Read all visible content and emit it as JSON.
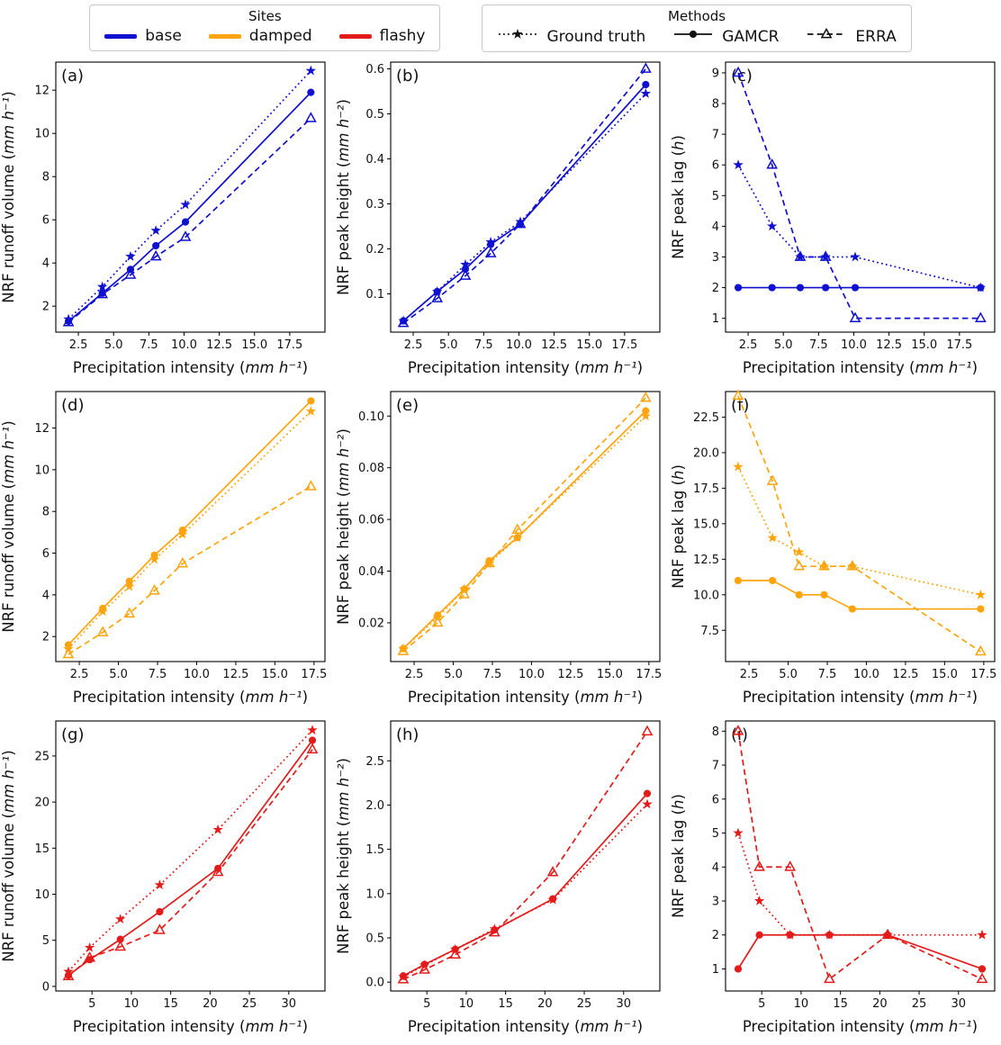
{
  "legend_sites": {
    "title": "Sites",
    "items": [
      {
        "label": "base",
        "color": "#1010d0"
      },
      {
        "label": "damped",
        "color": "#ffa40d"
      },
      {
        "label": "flashy",
        "color": "#e31b1b"
      }
    ]
  },
  "legend_methods": {
    "title": "Methods",
    "items": [
      {
        "label": "Ground truth",
        "marker": "star",
        "line": "dotted"
      },
      {
        "label": "GAMCR",
        "marker": "circle",
        "line": "solid"
      },
      {
        "label": "ERRA",
        "marker": "triangle",
        "line": "dashed"
      }
    ]
  },
  "chart_data": [
    {
      "id": "a",
      "panel_label": "(a)",
      "type": "line",
      "site": "base",
      "color": "#1010d0",
      "xlabel": "Precipitation intensity (mm h⁻¹)",
      "ylabel": "NRF runoff volume (mm h⁻¹)",
      "xlim": [
        0.9,
        20.0
      ],
      "ylim": [
        0.8,
        13.3
      ],
      "xticks": [
        2.5,
        5.0,
        7.5,
        10.0,
        12.5,
        15.0,
        17.5
      ],
      "xtick_decimals": 1,
      "yticks": [
        2,
        4,
        6,
        8,
        10,
        12
      ],
      "ytick_decimals": 0,
      "x": [
        1.8,
        4.2,
        6.2,
        8.0,
        10.1,
        19.0
      ],
      "series": [
        {
          "name": "Ground truth",
          "marker": "star",
          "line": "dotted",
          "values": [
            1.4,
            2.9,
            4.3,
            5.5,
            6.7,
            12.9
          ]
        },
        {
          "name": "GAMCR",
          "marker": "circle",
          "line": "solid",
          "values": [
            1.3,
            2.6,
            3.7,
            4.8,
            5.9,
            11.9
          ]
        },
        {
          "name": "ERRA",
          "marker": "triangle",
          "line": "dashed",
          "values": [
            1.25,
            2.55,
            3.45,
            4.3,
            5.2,
            10.7
          ]
        }
      ]
    },
    {
      "id": "b",
      "panel_label": "(b)",
      "type": "line",
      "site": "base",
      "color": "#1010d0",
      "xlabel": "Precipitation intensity (mm h⁻¹)",
      "ylabel": "NRF peak height (mm h⁻²)",
      "xlim": [
        0.9,
        20.0
      ],
      "ylim": [
        0.015,
        0.615
      ],
      "xticks": [
        2.5,
        5.0,
        7.5,
        10.0,
        12.5,
        15.0,
        17.5
      ],
      "xtick_decimals": 1,
      "yticks": [
        0.1,
        0.2,
        0.3,
        0.4,
        0.5,
        0.6
      ],
      "ytick_decimals": 1,
      "x": [
        1.8,
        4.2,
        6.2,
        8.0,
        10.1,
        19.0
      ],
      "series": [
        {
          "name": "Ground truth",
          "marker": "star",
          "line": "dotted",
          "values": [
            0.04,
            0.105,
            0.165,
            0.215,
            0.26,
            0.545
          ]
        },
        {
          "name": "GAMCR",
          "marker": "circle",
          "line": "solid",
          "values": [
            0.04,
            0.105,
            0.155,
            0.21,
            0.255,
            0.565
          ]
        },
        {
          "name": "ERRA",
          "marker": "triangle",
          "line": "dashed",
          "values": [
            0.035,
            0.09,
            0.14,
            0.19,
            0.255,
            0.6
          ]
        }
      ]
    },
    {
      "id": "c",
      "panel_label": "(c)",
      "type": "line",
      "site": "base",
      "color": "#1010d0",
      "xlabel": "Precipitation intensity (mm h⁻¹)",
      "ylabel": "NRF peak lag (h)",
      "xlim": [
        0.9,
        20.0
      ],
      "ylim": [
        0.55,
        9.35
      ],
      "xticks": [
        2.5,
        5.0,
        7.5,
        10.0,
        12.5,
        15.0,
        17.5
      ],
      "xtick_decimals": 1,
      "yticks": [
        1,
        2,
        3,
        4,
        5,
        6,
        7,
        8,
        9
      ],
      "ytick_decimals": 0,
      "x": [
        1.8,
        4.2,
        6.2,
        8.0,
        10.1,
        19.0
      ],
      "series": [
        {
          "name": "Ground truth",
          "marker": "star",
          "line": "dotted",
          "values": [
            6,
            4,
            3,
            3,
            3,
            2
          ]
        },
        {
          "name": "GAMCR",
          "marker": "circle",
          "line": "solid",
          "values": [
            2,
            2,
            2,
            2,
            2,
            2
          ]
        },
        {
          "name": "ERRA",
          "marker": "triangle",
          "line": "dashed",
          "values": [
            9,
            6,
            3,
            3,
            1,
            1
          ]
        }
      ]
    },
    {
      "id": "d",
      "panel_label": "(d)",
      "type": "line",
      "site": "damped",
      "color": "#ffa40d",
      "xlabel": "Precipitation intensity (mm h⁻¹)",
      "ylabel": "NRF runoff volume (mm h⁻¹)",
      "xlim": [
        1.0,
        18.2
      ],
      "ylim": [
        0.8,
        13.75
      ],
      "xticks": [
        2.5,
        5.0,
        7.5,
        10.0,
        12.5,
        15.0,
        17.5
      ],
      "xtick_decimals": 1,
      "yticks": [
        2,
        4,
        6,
        8,
        10,
        12
      ],
      "ytick_decimals": 0,
      "x": [
        1.8,
        4.0,
        5.7,
        7.3,
        9.1,
        17.3
      ],
      "series": [
        {
          "name": "Ground truth",
          "marker": "star",
          "line": "dotted",
          "values": [
            1.4,
            3.2,
            4.4,
            5.7,
            6.9,
            12.8
          ]
        },
        {
          "name": "GAMCR",
          "marker": "circle",
          "line": "solid",
          "values": [
            1.6,
            3.35,
            4.65,
            5.9,
            7.1,
            13.3
          ]
        },
        {
          "name": "ERRA",
          "marker": "triangle",
          "line": "dashed",
          "values": [
            1.15,
            2.2,
            3.1,
            4.2,
            5.5,
            9.2
          ]
        }
      ]
    },
    {
      "id": "e",
      "panel_label": "(e)",
      "type": "line",
      "site": "damped",
      "color": "#ffa40d",
      "xlabel": "Precipitation intensity (mm h⁻¹)",
      "ylabel": "NRF peak height (mm h⁻²)",
      "xlim": [
        1.0,
        18.2
      ],
      "ylim": [
        0.005,
        0.1095
      ],
      "xticks": [
        2.5,
        5.0,
        7.5,
        10.0,
        12.5,
        15.0,
        17.5
      ],
      "xtick_decimals": 1,
      "yticks": [
        0.02,
        0.04,
        0.06,
        0.08,
        0.1
      ],
      "ytick_decimals": 2,
      "x": [
        1.8,
        4.0,
        5.7,
        7.3,
        9.1,
        17.3
      ],
      "series": [
        {
          "name": "Ground truth",
          "marker": "star",
          "line": "dotted",
          "values": [
            0.01,
            0.022,
            0.033,
            0.043,
            0.053,
            0.1
          ]
        },
        {
          "name": "GAMCR",
          "marker": "circle",
          "line": "solid",
          "values": [
            0.01,
            0.023,
            0.033,
            0.044,
            0.053,
            0.102
          ]
        },
        {
          "name": "ERRA",
          "marker": "triangle",
          "line": "dashed",
          "values": [
            0.009,
            0.02,
            0.031,
            0.043,
            0.056,
            0.107
          ]
        }
      ]
    },
    {
      "id": "f",
      "panel_label": "(f)",
      "type": "line",
      "site": "damped",
      "color": "#ffa40d",
      "xlabel": "Precipitation intensity (mm h⁻¹)",
      "ylabel": "NRF peak lag (h)",
      "xlim": [
        1.0,
        18.2
      ],
      "ylim": [
        5.3,
        24.3
      ],
      "xticks": [
        2.5,
        5.0,
        7.5,
        10.0,
        12.5,
        15.0,
        17.5
      ],
      "xtick_decimals": 1,
      "yticks": [
        7.5,
        10.0,
        12.5,
        15.0,
        17.5,
        20.0,
        22.5
      ],
      "ytick_decimals": 1,
      "x": [
        1.8,
        4.0,
        5.7,
        7.3,
        9.1,
        17.3
      ],
      "series": [
        {
          "name": "Ground truth",
          "marker": "star",
          "line": "dotted",
          "values": [
            19,
            14,
            13,
            12,
            12,
            10
          ]
        },
        {
          "name": "GAMCR",
          "marker": "circle",
          "line": "solid",
          "values": [
            11,
            11,
            10,
            10,
            9,
            9
          ]
        },
        {
          "name": "ERRA",
          "marker": "triangle",
          "line": "dashed",
          "values": [
            24,
            18,
            12,
            12,
            12,
            6
          ]
        }
      ]
    },
    {
      "id": "g",
      "panel_label": "(g)",
      "type": "line",
      "site": "flashy",
      "color": "#e31b1b",
      "xlabel": "Precipitation intensity (mm h⁻¹)",
      "ylabel": "NRF runoff volume (mm h⁻¹)",
      "xlim": [
        0.4,
        34.6
      ],
      "ylim": [
        -0.5,
        28.8
      ],
      "xticks": [
        5,
        10,
        15,
        20,
        25,
        30
      ],
      "xtick_decimals": 0,
      "yticks": [
        0,
        5,
        10,
        15,
        20,
        25
      ],
      "ytick_decimals": 0,
      "x": [
        2.0,
        4.7,
        8.6,
        13.6,
        21.0,
        33.0
      ],
      "series": [
        {
          "name": "Ground truth",
          "marker": "star",
          "line": "dotted",
          "values": [
            1.6,
            4.2,
            7.3,
            11.0,
            17.0,
            27.8
          ]
        },
        {
          "name": "GAMCR",
          "marker": "circle",
          "line": "solid",
          "values": [
            1.2,
            2.9,
            5.1,
            8.1,
            12.8,
            26.7
          ]
        },
        {
          "name": "ERRA",
          "marker": "triangle",
          "line": "dashed",
          "values": [
            1.1,
            3.1,
            4.3,
            6.1,
            12.4,
            25.7
          ]
        }
      ]
    },
    {
      "id": "h",
      "panel_label": "(h)",
      "type": "line",
      "site": "flashy",
      "color": "#e31b1b",
      "xlabel": "Precipitation intensity (mm h⁻¹)",
      "ylabel": "NRF peak height (mm h⁻²)",
      "xlim": [
        0.4,
        34.6
      ],
      "ylim": [
        -0.1,
        2.95
      ],
      "xticks": [
        5,
        10,
        15,
        20,
        25,
        30
      ],
      "xtick_decimals": 0,
      "yticks": [
        0.0,
        0.5,
        1.0,
        1.5,
        2.0,
        2.5
      ],
      "ytick_decimals": 1,
      "x": [
        2.0,
        4.7,
        8.6,
        13.6,
        21.0,
        33.0
      ],
      "series": [
        {
          "name": "Ground truth",
          "marker": "star",
          "line": "dotted",
          "values": [
            0.06,
            0.19,
            0.37,
            0.6,
            0.93,
            2.01
          ]
        },
        {
          "name": "GAMCR",
          "marker": "circle",
          "line": "solid",
          "values": [
            0.07,
            0.2,
            0.37,
            0.59,
            0.94,
            2.13
          ]
        },
        {
          "name": "ERRA",
          "marker": "triangle",
          "line": "dashed",
          "values": [
            0.03,
            0.14,
            0.31,
            0.56,
            1.24,
            2.83
          ]
        }
      ]
    },
    {
      "id": "i",
      "panel_label": "(i)",
      "type": "line",
      "site": "flashy",
      "color": "#e31b1b",
      "xlabel": "Precipitation intensity (mm h⁻¹)",
      "ylabel": "NRF peak lag (h)",
      "xlim": [
        0.4,
        34.6
      ],
      "ylim": [
        0.35,
        8.3
      ],
      "xticks": [
        5,
        10,
        15,
        20,
        25,
        30
      ],
      "xtick_decimals": 0,
      "yticks": [
        1,
        2,
        3,
        4,
        5,
        6,
        7,
        8
      ],
      "ytick_decimals": 0,
      "x": [
        2.0,
        4.7,
        8.6,
        13.6,
        21.0,
        33.0
      ],
      "series": [
        {
          "name": "Ground truth",
          "marker": "star",
          "line": "dotted",
          "values": [
            5,
            3,
            2,
            2,
            2,
            2
          ]
        },
        {
          "name": "GAMCR",
          "marker": "circle",
          "line": "solid",
          "values": [
            1,
            2,
            2,
            2,
            2,
            1
          ]
        },
        {
          "name": "ERRA",
          "marker": "triangle",
          "line": "dashed",
          "values": [
            8,
            4,
            4,
            0.7,
            2,
            0.7
          ]
        }
      ]
    }
  ]
}
